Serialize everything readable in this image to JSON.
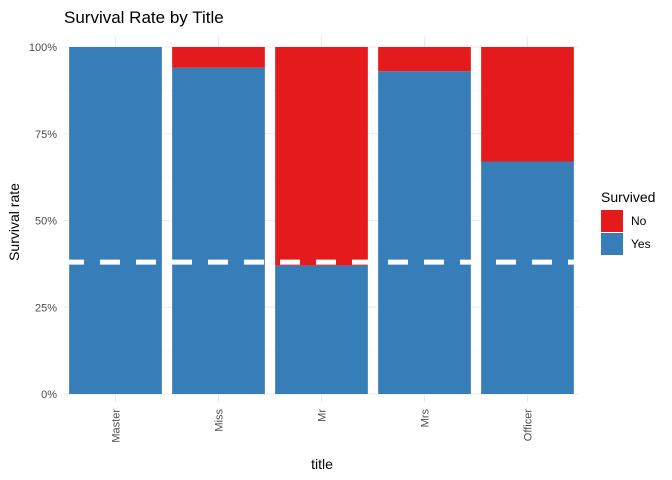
{
  "chart_data": {
    "type": "bar",
    "stacked": "fill",
    "title": "Survival Rate by Title",
    "xlabel": "title",
    "ylabel": "Survival rate",
    "categories": [
      "Master",
      "Miss",
      "Mr",
      "Mrs",
      "Officer"
    ],
    "series": [
      {
        "name": "No",
        "color": "#E41A1C",
        "values": [
          0.0,
          0.06,
          0.63,
          0.07,
          0.33
        ]
      },
      {
        "name": "Yes",
        "color": "#377EB8",
        "values": [
          1.0,
          0.94,
          0.37,
          0.93,
          0.67
        ]
      }
    ],
    "ylim": [
      0,
      1
    ],
    "yticks": [
      0,
      0.25,
      0.5,
      0.75,
      1.0
    ],
    "ytick_labels": [
      "0%",
      "25%",
      "50%",
      "75%",
      "100%"
    ],
    "reference_line": {
      "y": 0.38,
      "style": "dashed",
      "color": "#ffffff"
    },
    "legend": {
      "title": "Survived",
      "position": "right",
      "entries": [
        "No",
        "Yes"
      ]
    },
    "grid": true
  }
}
